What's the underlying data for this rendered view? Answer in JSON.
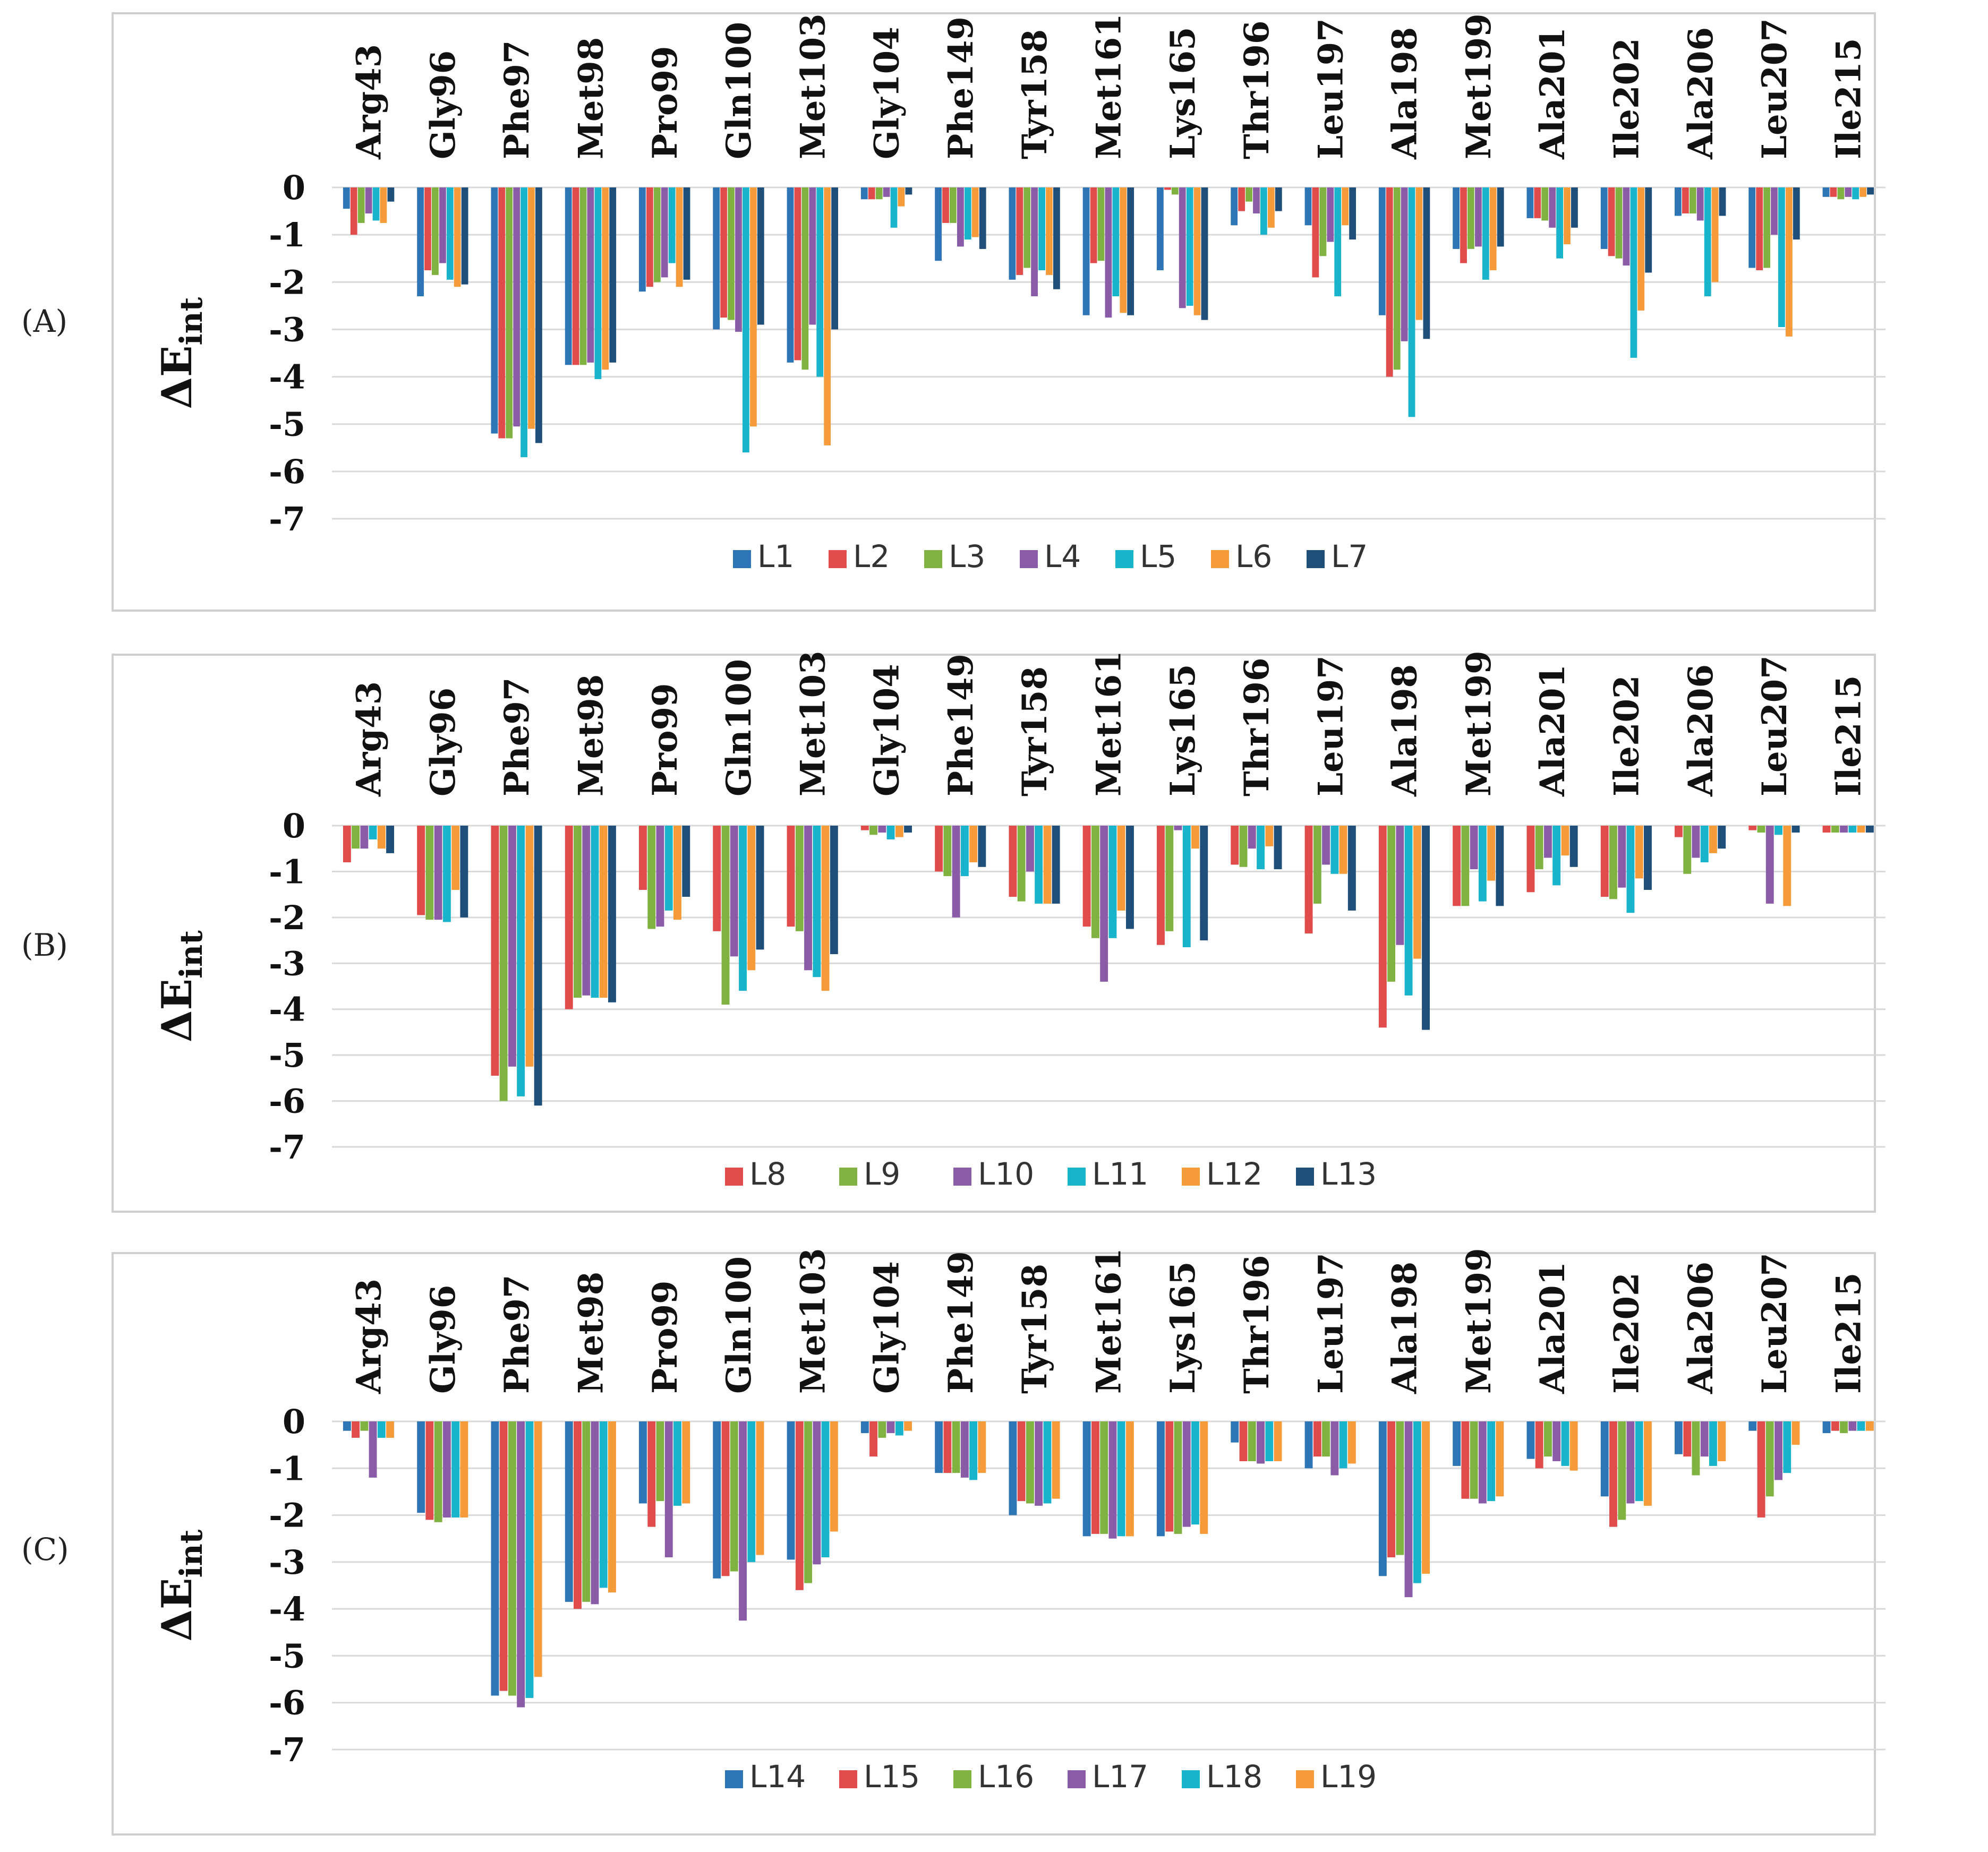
{
  "chart_data": [
    {
      "panel": "(A)",
      "type": "bar",
      "ylabel": "ΔE",
      "ylabel_sub": "int",
      "ylim": [
        -7,
        0
      ],
      "yticks": [
        "0",
        "-1",
        "-2",
        "-3",
        "-4",
        "-5",
        "-6",
        "-7"
      ],
      "categories": [
        "Arg43",
        "Gly96",
        "Phe97",
        "Met98",
        "Pro99",
        "Gln100",
        "Met103",
        "Gly104",
        "Phe149",
        "Tyr158",
        "Met161",
        "Lys165",
        "Thr196",
        "Leu197",
        "Ala198",
        "Met199",
        "Ala201",
        "Ile202",
        "Ala206",
        "Leu207",
        "Ile215"
      ],
      "legend_position": "bottom",
      "series": [
        {
          "name": "L1",
          "color": "#2e75b6",
          "values": [
            -0.45,
            -2.3,
            -5.2,
            -3.75,
            -2.2,
            -3.0,
            -3.7,
            -0.25,
            -1.55,
            -1.95,
            -2.7,
            -1.75,
            -0.8,
            -0.8,
            -2.7,
            -1.3,
            -0.65,
            -1.3,
            -0.6,
            -1.7,
            -0.2
          ]
        },
        {
          "name": "L2",
          "color": "#e04b4b",
          "values": [
            -1.0,
            -1.75,
            -5.3,
            -3.75,
            -2.1,
            -2.75,
            -3.65,
            -0.25,
            -0.75,
            -1.85,
            -1.6,
            -0.05,
            -0.5,
            -1.9,
            -4.0,
            -1.6,
            -0.65,
            -1.45,
            -0.55,
            -1.75,
            -0.2
          ]
        },
        {
          "name": "L3",
          "color": "#7fb241",
          "values": [
            -0.75,
            -1.85,
            -5.3,
            -3.75,
            -2.0,
            -2.8,
            -3.85,
            -0.25,
            -0.75,
            -1.7,
            -1.55,
            -0.15,
            -0.3,
            -1.45,
            -3.85,
            -1.3,
            -0.7,
            -1.5,
            -0.55,
            -1.7,
            -0.25
          ]
        },
        {
          "name": "L4",
          "color": "#8a5ca8",
          "values": [
            -0.55,
            -1.6,
            -5.05,
            -3.7,
            -1.9,
            -3.05,
            -2.9,
            -0.2,
            -1.25,
            -2.3,
            -2.75,
            -2.55,
            -0.55,
            -1.15,
            -3.25,
            -1.25,
            -0.85,
            -1.65,
            -0.7,
            -1.0,
            -0.2
          ]
        },
        {
          "name": "L5",
          "color": "#19b4cc",
          "values": [
            -0.7,
            -1.95,
            -5.7,
            -4.05,
            -1.6,
            -5.6,
            -4.0,
            -0.85,
            -1.1,
            -1.75,
            -2.3,
            -2.5,
            -1.0,
            -2.3,
            -4.85,
            -1.95,
            -1.5,
            -3.6,
            -2.3,
            -2.95,
            -0.25
          ]
        },
        {
          "name": "L6",
          "color": "#f59b3a",
          "values": [
            -0.75,
            -2.1,
            -5.1,
            -3.85,
            -2.1,
            -5.05,
            -5.45,
            -0.4,
            -1.05,
            -1.85,
            -2.65,
            -2.7,
            -0.85,
            -0.8,
            -2.8,
            -1.75,
            -1.2,
            -2.6,
            -2.0,
            -3.15,
            -0.2
          ]
        },
        {
          "name": "L7",
          "color": "#1f4e79",
          "values": [
            -0.3,
            -2.05,
            -5.4,
            -3.7,
            -1.95,
            -2.9,
            -3.0,
            -0.15,
            -1.3,
            -2.15,
            -2.7,
            -2.8,
            -0.5,
            -1.1,
            -3.2,
            -1.25,
            -0.85,
            -1.8,
            -0.6,
            -1.1,
            -0.15
          ]
        }
      ]
    },
    {
      "panel": "(B)",
      "type": "bar",
      "ylabel": "ΔE",
      "ylabel_sub": "int",
      "ylim": [
        -7,
        0
      ],
      "yticks": [
        "0",
        "-1",
        "-2",
        "-3",
        "-4",
        "-5",
        "-6",
        "-7"
      ],
      "categories": [
        "Arg43",
        "Gly96",
        "Phe97",
        "Met98",
        "Pro99",
        "Gln100",
        "Met103",
        "Gly104",
        "Phe149",
        "Tyr158",
        "Met161",
        "Lys165",
        "Thr196",
        "Leu197",
        "Ala198",
        "Met199",
        "Ala201",
        "Ile202",
        "Ala206",
        "Leu207",
        "Ile215"
      ],
      "legend_position": "bottom",
      "series": [
        {
          "name": "L8",
          "color": "#e04b4b",
          "values": [
            -0.8,
            -1.95,
            -5.45,
            -4.0,
            -1.4,
            -2.3,
            -2.2,
            -0.1,
            -1.0,
            -1.55,
            -2.2,
            -2.6,
            -0.85,
            -2.35,
            -4.4,
            -1.75,
            -1.45,
            -1.55,
            -0.25,
            -0.1,
            -0.15
          ]
        },
        {
          "name": "L9",
          "color": "#7fb241",
          "values": [
            -0.5,
            -2.05,
            -6.0,
            -3.75,
            -2.25,
            -3.9,
            -2.3,
            -0.2,
            -1.1,
            -1.65,
            -2.45,
            -2.3,
            -0.9,
            -1.7,
            -3.4,
            -1.75,
            -0.95,
            -1.6,
            -1.05,
            -0.15,
            -0.15
          ]
        },
        {
          "name": "L10",
          "color": "#8a5ca8",
          "values": [
            -0.5,
            -2.05,
            -5.25,
            -3.7,
            -2.2,
            -2.85,
            -3.15,
            -0.15,
            -2.0,
            -1.0,
            -3.4,
            -0.1,
            -0.5,
            -0.85,
            -2.6,
            -0.95,
            -0.7,
            -1.35,
            -0.7,
            -1.7,
            -0.15
          ]
        },
        {
          "name": "L11",
          "color": "#19b4cc",
          "values": [
            -0.3,
            -2.1,
            -5.9,
            -3.75,
            -1.85,
            -3.6,
            -3.3,
            -0.3,
            -1.1,
            -1.7,
            -2.45,
            -2.65,
            -0.95,
            -1.05,
            -3.7,
            -1.65,
            -1.3,
            -1.9,
            -0.8,
            -0.2,
            -0.15
          ]
        },
        {
          "name": "L12",
          "color": "#f59b3a",
          "values": [
            -0.5,
            -1.4,
            -5.25,
            -3.75,
            -2.05,
            -3.15,
            -3.6,
            -0.25,
            -0.8,
            -1.7,
            -1.85,
            -0.5,
            -0.45,
            -1.05,
            -2.9,
            -1.2,
            -0.65,
            -1.15,
            -0.6,
            -1.75,
            -0.15
          ]
        },
        {
          "name": "L13",
          "color": "#1f4e79",
          "values": [
            -0.6,
            -2.0,
            -6.1,
            -3.85,
            -1.55,
            -2.7,
            -2.8,
            -0.15,
            -0.9,
            -1.7,
            -2.25,
            -2.5,
            -0.95,
            -1.85,
            -4.45,
            -1.75,
            -0.9,
            -1.4,
            -0.5,
            -0.15,
            -0.15
          ]
        }
      ]
    },
    {
      "panel": "(C)",
      "type": "bar",
      "ylabel": "ΔE",
      "ylabel_sub": "int",
      "ylim": [
        -7,
        0
      ],
      "yticks": [
        "0",
        "-1",
        "-2",
        "-3",
        "-4",
        "-5",
        "-6",
        "-7"
      ],
      "categories": [
        "Arg43",
        "Gly96",
        "Phe97",
        "Met98",
        "Pro99",
        "Gln100",
        "Met103",
        "Gly104",
        "Phe149",
        "Tyr158",
        "Met161",
        "Lys165",
        "Thr196",
        "Leu197",
        "Ala198",
        "Met199",
        "Ala201",
        "Ile202",
        "Ala206",
        "Leu207",
        "Ile215"
      ],
      "legend_position": "bottom",
      "series": [
        {
          "name": "L14",
          "color": "#2e75b6",
          "values": [
            -0.2,
            -1.95,
            -5.85,
            -3.85,
            -1.75,
            -3.35,
            -2.95,
            -0.25,
            -1.1,
            -2.0,
            -2.45,
            -2.45,
            -0.45,
            -1.0,
            -3.3,
            -0.95,
            -0.8,
            -1.6,
            -0.7,
            -0.2,
            -0.25
          ]
        },
        {
          "name": "L15",
          "color": "#e04b4b",
          "values": [
            -0.35,
            -2.1,
            -5.75,
            -4.0,
            -2.25,
            -3.3,
            -3.6,
            -0.75,
            -1.1,
            -1.7,
            -2.4,
            -2.35,
            -0.85,
            -0.75,
            -2.9,
            -1.65,
            -1.0,
            -2.25,
            -0.75,
            -2.05,
            -0.2
          ]
        },
        {
          "name": "L16",
          "color": "#7fb241",
          "values": [
            -0.2,
            -2.15,
            -5.85,
            -3.85,
            -1.7,
            -3.2,
            -3.45,
            -0.35,
            -1.1,
            -1.75,
            -2.4,
            -2.4,
            -0.85,
            -0.75,
            -2.85,
            -1.65,
            -0.75,
            -2.1,
            -1.15,
            -1.6,
            -0.25
          ]
        },
        {
          "name": "L17",
          "color": "#8a5ca8",
          "values": [
            -1.2,
            -2.05,
            -6.1,
            -3.9,
            -2.9,
            -4.25,
            -3.05,
            -0.25,
            -1.2,
            -1.8,
            -2.5,
            -2.25,
            -0.9,
            -1.15,
            -3.75,
            -1.75,
            -0.85,
            -1.75,
            -0.75,
            -1.25,
            -0.2
          ]
        },
        {
          "name": "L18",
          "color": "#19b4cc",
          "values": [
            -0.35,
            -2.05,
            -5.9,
            -3.55,
            -1.8,
            -3.0,
            -2.9,
            -0.3,
            -1.25,
            -1.75,
            -2.45,
            -2.2,
            -0.85,
            -1.0,
            -3.45,
            -1.7,
            -0.95,
            -1.7,
            -0.95,
            -1.1,
            -0.2
          ]
        },
        {
          "name": "L19",
          "color": "#f59b3a",
          "values": [
            -0.35,
            -2.05,
            -5.45,
            -3.65,
            -1.75,
            -2.85,
            -2.35,
            -0.2,
            -1.1,
            -1.65,
            -2.45,
            -2.4,
            -0.85,
            -0.9,
            -3.25,
            -1.6,
            -1.05,
            -1.8,
            -0.85,
            -0.5,
            -0.2
          ]
        }
      ]
    }
  ]
}
